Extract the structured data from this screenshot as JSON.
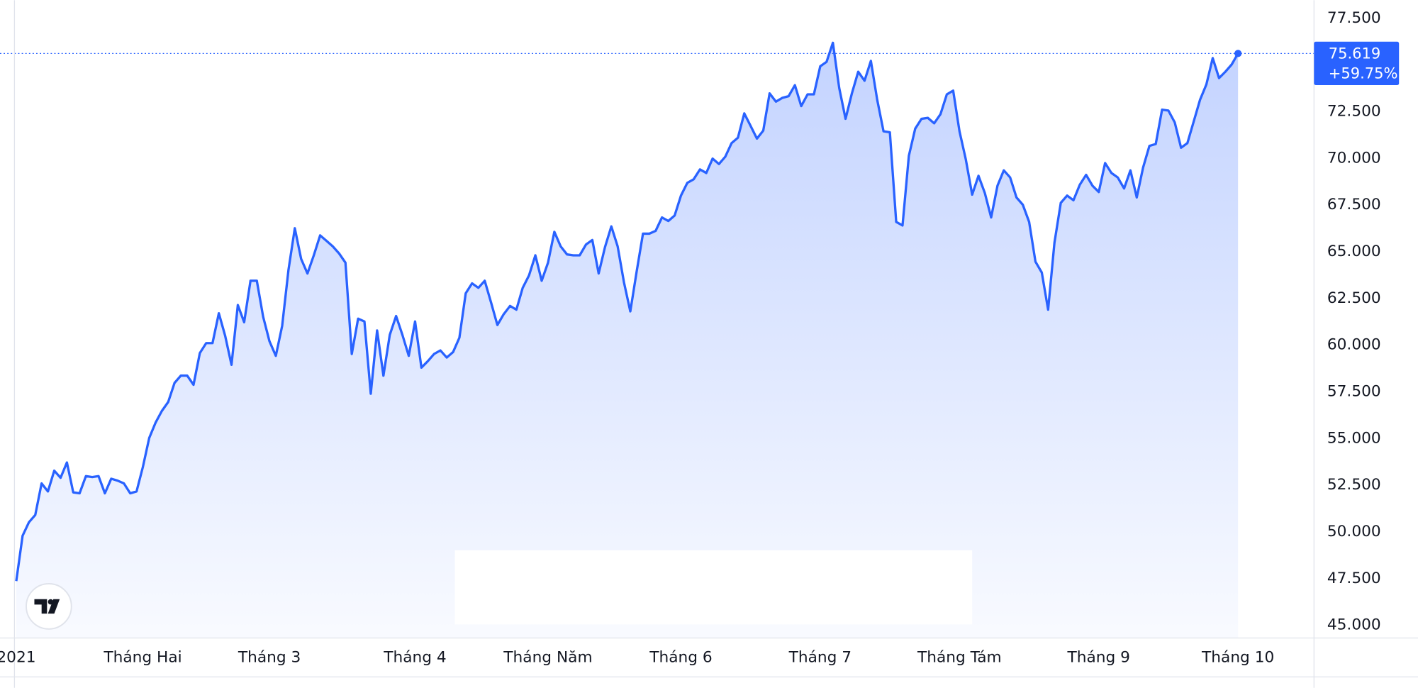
{
  "chart_data": {
    "type": "area",
    "series": [
      {
        "color": "#2962ff",
        "values": [
          47370,
          49800,
          50520,
          50910,
          52600,
          52170,
          53280,
          52900,
          53720,
          52120,
          52070,
          52990,
          52940,
          52990,
          52070,
          52850,
          52750,
          52600,
          52070,
          52170,
          53480,
          55030,
          55850,
          56480,
          56960,
          57980,
          58370,
          58370,
          57880,
          59580,
          60110,
          60110,
          61710,
          60500,
          58950,
          62150,
          61230,
          63450,
          63450,
          61520,
          60210,
          59430,
          61030,
          64030,
          66260,
          64620,
          63840,
          64810,
          65880,
          65590,
          65290,
          64910,
          64420,
          59530,
          61420,
          61270,
          57400,
          60790,
          58370,
          60550,
          61560,
          60550,
          59430,
          61270,
          58800,
          59140,
          59530,
          59720,
          59340,
          59630,
          60400,
          62780,
          63310,
          63070,
          63450,
          62290,
          61080,
          61660,
          62100,
          61900,
          63070,
          63740,
          64810,
          63450,
          64420,
          66070,
          65290,
          64860,
          64810,
          64810,
          65390,
          65630,
          63840,
          65250,
          66360,
          65290,
          63360,
          61810,
          63940,
          65970,
          65970,
          66120,
          66840,
          66650,
          66940,
          68010,
          68690,
          68880,
          69410,
          69220,
          69990,
          69700,
          70090,
          70820,
          71110,
          72410,
          71740,
          71060,
          71490,
          73480,
          73040,
          73240,
          73330,
          73920,
          72800,
          73430,
          73430,
          74930,
          75170,
          76190,
          73770,
          72120,
          73480,
          74640,
          74160,
          75220,
          73140,
          71450,
          71400,
          66600,
          66410,
          70140,
          71590,
          72120,
          72170,
          71880,
          72370,
          73430,
          73630,
          71450,
          69940,
          68060,
          69070,
          68150,
          66840,
          68540,
          69360,
          68980,
          67910,
          67520,
          66600,
          64470,
          63890,
          61900,
          65490,
          67620,
          68010,
          67760,
          68590,
          69120,
          68540,
          68200,
          69750,
          69220,
          68980,
          68390,
          69360,
          67910,
          69510,
          70670,
          70770,
          72610,
          72560,
          71930,
          70570,
          70820,
          71980,
          73140,
          73960,
          75370,
          74300,
          74640,
          75030,
          75619
        ]
      }
    ],
    "ylim": [
      44322,
      78469
    ],
    "yticks": [
      {
        "value": 45000,
        "label": "45.000"
      },
      {
        "value": 47500,
        "label": "47.500"
      },
      {
        "value": 50000,
        "label": "50.000"
      },
      {
        "value": 52500,
        "label": "52.500"
      },
      {
        "value": 55000,
        "label": "55.000"
      },
      {
        "value": 57500,
        "label": "57.500"
      },
      {
        "value": 60000,
        "label": "60.000"
      },
      {
        "value": 62500,
        "label": "62.500"
      },
      {
        "value": 65000,
        "label": "65.000"
      },
      {
        "value": 67500,
        "label": "67.500"
      },
      {
        "value": 70000,
        "label": "70.000"
      },
      {
        "value": 72500,
        "label": "72.500"
      },
      {
        "value": 75000,
        "label": "75.000"
      },
      {
        "value": 77500,
        "label": "77.500"
      }
    ],
    "xlim": [
      -2.57,
      205
    ],
    "xticks": [
      {
        "value": 0,
        "label": "2021"
      },
      {
        "value": 20,
        "label": "Tháng Hai"
      },
      {
        "value": 40,
        "label": "Tháng 3"
      },
      {
        "value": 63,
        "label": "Tháng 4"
      },
      {
        "value": 84,
        "label": "Tháng Năm"
      },
      {
        "value": 105,
        "label": "Tháng 6"
      },
      {
        "value": 127,
        "label": "Tháng 7"
      },
      {
        "value": 149,
        "label": "Tháng Tám"
      },
      {
        "value": 171,
        "label": "Tháng 9"
      },
      {
        "value": 193,
        "label": "Tháng 10"
      }
    ],
    "last_price": {
      "value": 75619,
      "label": "75.619"
    },
    "change": "+59.75%",
    "grid": false
  }
}
